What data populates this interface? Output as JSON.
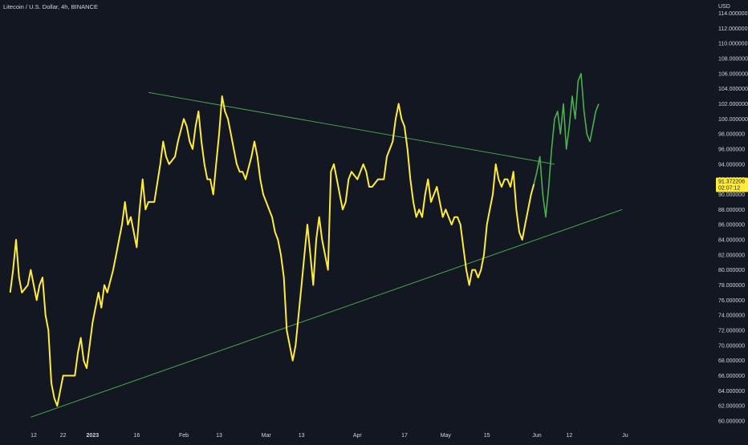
{
  "header": {
    "title": "Litecoin / U.S. Dollar, 4h, BINANCE"
  },
  "price_tag": {
    "value": "91.372206",
    "countdown": "02:07:12"
  },
  "colors": {
    "background": "#131722",
    "axis_text": "#d1d4dc",
    "price_series": "#ffeb3b",
    "projection_series": "#4caf50",
    "trendline": "#4caf50",
    "price_tag_bg": "#ffeb3b",
    "price_tag_text": "#131722"
  },
  "chart_data": {
    "type": "line",
    "currency": "USD",
    "ylim": [
      60,
      115
    ],
    "yticks": [
      60,
      62,
      64,
      66,
      68,
      70,
      72,
      74,
      76,
      78,
      80,
      82,
      84,
      86,
      88,
      90,
      92,
      94,
      96,
      98,
      100,
      102,
      104,
      106,
      108,
      110,
      112,
      114
    ],
    "ytick_labels": [
      "60.000000",
      "62.000000",
      "64.000000",
      "66.000000",
      "68.000000",
      "70.000000",
      "72.000000",
      "74.000000",
      "76.000000",
      "78.000000",
      "80.000000",
      "82.000000",
      "84.000000",
      "86.000000",
      "88.000000",
      "90.000000",
      "92.000000",
      "94.000000",
      "96.000000",
      "98.000000",
      "100.000000",
      "102.000000",
      "104.000000",
      "106.000000",
      "108.000000",
      "110.000000",
      "112.000000",
      "114.000000"
    ],
    "xticks": [
      {
        "date": "2022-12-12",
        "label": "12"
      },
      {
        "date": "2022-12-22",
        "label": "22"
      },
      {
        "date": "2023-01-01",
        "label": "2023"
      },
      {
        "date": "2023-01-16",
        "label": "16"
      },
      {
        "date": "2023-02-01",
        "label": "Feb"
      },
      {
        "date": "2023-02-13",
        "label": "13"
      },
      {
        "date": "2023-03-01",
        "label": "Mar"
      },
      {
        "date": "2023-03-13",
        "label": "13"
      },
      {
        "date": "2023-04-01",
        "label": "Apr"
      },
      {
        "date": "2023-04-17",
        "label": "17"
      },
      {
        "date": "2023-05-01",
        "label": "May"
      },
      {
        "date": "2023-05-15",
        "label": "15"
      },
      {
        "date": "2023-06-01",
        "label": "Jun"
      },
      {
        "date": "2023-06-12",
        "label": "12"
      },
      {
        "date": "2023-07-01",
        "label": "Ju"
      }
    ],
    "series": [
      {
        "color": "#ffeb3b",
        "points": [
          [
            "2022-12-04",
            77
          ],
          [
            "2022-12-05",
            80
          ],
          [
            "2022-12-06",
            84
          ],
          [
            "2022-12-07",
            79
          ],
          [
            "2022-12-08",
            77
          ],
          [
            "2022-12-10",
            78
          ],
          [
            "2022-12-11",
            80
          ],
          [
            "2022-12-12",
            78
          ],
          [
            "2022-12-13",
            76
          ],
          [
            "2022-12-14",
            78
          ],
          [
            "2022-12-15",
            79
          ],
          [
            "2022-12-16",
            74
          ],
          [
            "2022-12-17",
            72
          ],
          [
            "2022-12-18",
            65
          ],
          [
            "2022-12-19",
            63
          ],
          [
            "2022-12-20",
            62
          ],
          [
            "2022-12-21",
            64
          ],
          [
            "2022-12-22",
            66
          ],
          [
            "2022-12-24",
            66
          ],
          [
            "2022-12-26",
            66
          ],
          [
            "2022-12-27",
            69
          ],
          [
            "2022-12-28",
            71
          ],
          [
            "2022-12-29",
            68
          ],
          [
            "2022-12-30",
            67
          ],
          [
            "2022-12-31",
            70
          ],
          [
            "2023-01-01",
            73
          ],
          [
            "2023-01-02",
            75
          ],
          [
            "2023-01-03",
            77
          ],
          [
            "2023-01-04",
            75
          ],
          [
            "2023-01-05",
            78
          ],
          [
            "2023-01-06",
            77
          ],
          [
            "2023-01-08",
            80
          ],
          [
            "2023-01-09",
            82
          ],
          [
            "2023-01-10",
            84
          ],
          [
            "2023-01-11",
            86
          ],
          [
            "2023-01-12",
            89
          ],
          [
            "2023-01-13",
            86
          ],
          [
            "2023-01-14",
            87
          ],
          [
            "2023-01-15",
            85
          ],
          [
            "2023-01-16",
            83
          ],
          [
            "2023-01-17",
            88
          ],
          [
            "2023-01-18",
            92
          ],
          [
            "2023-01-19",
            88
          ],
          [
            "2023-01-20",
            89
          ],
          [
            "2023-01-22",
            89
          ],
          [
            "2023-01-24",
            94
          ],
          [
            "2023-01-25",
            97
          ],
          [
            "2023-01-26",
            95
          ],
          [
            "2023-01-27",
            94
          ],
          [
            "2023-01-29",
            95
          ],
          [
            "2023-01-30",
            97
          ],
          [
            "2023-02-01",
            100
          ],
          [
            "2023-02-02",
            99
          ],
          [
            "2023-02-03",
            97
          ],
          [
            "2023-02-04",
            96
          ],
          [
            "2023-02-05",
            99
          ],
          [
            "2023-02-06",
            101
          ],
          [
            "2023-02-07",
            97
          ],
          [
            "2023-02-08",
            94
          ],
          [
            "2023-02-09",
            92
          ],
          [
            "2023-02-10",
            92
          ],
          [
            "2023-02-11",
            90
          ],
          [
            "2023-02-12",
            94
          ],
          [
            "2023-02-13",
            98
          ],
          [
            "2023-02-14",
            103
          ],
          [
            "2023-02-15",
            101
          ],
          [
            "2023-02-16",
            100
          ],
          [
            "2023-02-17",
            98
          ],
          [
            "2023-02-18",
            96
          ],
          [
            "2023-02-19",
            94
          ],
          [
            "2023-02-20",
            93
          ],
          [
            "2023-02-21",
            93
          ],
          [
            "2023-02-22",
            92
          ],
          [
            "2023-02-24",
            95
          ],
          [
            "2023-02-25",
            97
          ],
          [
            "2023-02-26",
            95
          ],
          [
            "2023-02-27",
            92
          ],
          [
            "2023-02-28",
            90
          ],
          [
            "2023-03-01",
            89
          ],
          [
            "2023-03-02",
            88
          ],
          [
            "2023-03-03",
            87
          ],
          [
            "2023-03-04",
            85
          ],
          [
            "2023-03-05",
            84
          ],
          [
            "2023-03-06",
            82
          ],
          [
            "2023-03-07",
            79
          ],
          [
            "2023-03-08",
            72
          ],
          [
            "2023-03-09",
            70
          ],
          [
            "2023-03-10",
            68
          ],
          [
            "2023-03-11",
            70
          ],
          [
            "2023-03-12",
            74
          ],
          [
            "2023-03-13",
            78
          ],
          [
            "2023-03-14",
            82
          ],
          [
            "2023-03-15",
            86
          ],
          [
            "2023-03-16",
            82
          ],
          [
            "2023-03-17",
            78
          ],
          [
            "2023-03-18",
            84
          ],
          [
            "2023-03-19",
            87
          ],
          [
            "2023-03-20",
            84
          ],
          [
            "2023-03-21",
            82
          ],
          [
            "2023-03-22",
            80
          ],
          [
            "2023-03-23",
            93
          ],
          [
            "2023-03-24",
            94
          ],
          [
            "2023-03-25",
            92
          ],
          [
            "2023-03-26",
            90
          ],
          [
            "2023-03-27",
            88
          ],
          [
            "2023-03-28",
            89
          ],
          [
            "2023-03-29",
            92
          ],
          [
            "2023-03-30",
            93
          ],
          [
            "2023-04-01",
            92
          ],
          [
            "2023-04-03",
            94
          ],
          [
            "2023-04-04",
            93
          ],
          [
            "2023-04-05",
            91
          ],
          [
            "2023-04-06",
            91
          ],
          [
            "2023-04-08",
            92
          ],
          [
            "2023-04-10",
            92
          ],
          [
            "2023-04-11",
            95
          ],
          [
            "2023-04-12",
            96
          ],
          [
            "2023-04-13",
            97
          ],
          [
            "2023-04-14",
            100
          ],
          [
            "2023-04-15",
            102
          ],
          [
            "2023-04-16",
            100
          ],
          [
            "2023-04-17",
            99
          ],
          [
            "2023-04-18",
            96
          ],
          [
            "2023-04-19",
            92
          ],
          [
            "2023-04-20",
            89
          ],
          [
            "2023-04-21",
            87
          ],
          [
            "2023-04-22",
            88
          ],
          [
            "2023-04-23",
            87
          ],
          [
            "2023-04-24",
            90
          ],
          [
            "2023-04-25",
            92
          ],
          [
            "2023-04-26",
            89
          ],
          [
            "2023-04-27",
            90
          ],
          [
            "2023-04-28",
            91
          ],
          [
            "2023-04-29",
            89
          ],
          [
            "2023-04-30",
            87
          ],
          [
            "2023-05-01",
            88
          ],
          [
            "2023-05-02",
            87
          ],
          [
            "2023-05-03",
            86
          ],
          [
            "2023-05-04",
            87
          ],
          [
            "2023-05-05",
            87
          ],
          [
            "2023-05-06",
            86
          ],
          [
            "2023-05-07",
            83
          ],
          [
            "2023-05-08",
            80
          ],
          [
            "2023-05-09",
            78
          ],
          [
            "2023-05-10",
            80
          ],
          [
            "2023-05-11",
            80
          ],
          [
            "2023-05-12",
            79
          ],
          [
            "2023-05-13",
            80
          ],
          [
            "2023-05-14",
            82
          ],
          [
            "2023-05-15",
            86
          ],
          [
            "2023-05-16",
            88
          ],
          [
            "2023-05-17",
            90
          ],
          [
            "2023-05-18",
            94
          ],
          [
            "2023-05-19",
            92
          ],
          [
            "2023-05-20",
            91
          ],
          [
            "2023-05-21",
            92
          ],
          [
            "2023-05-22",
            92
          ],
          [
            "2023-05-23",
            91
          ],
          [
            "2023-05-24",
            93
          ],
          [
            "2023-05-25",
            88
          ],
          [
            "2023-05-26",
            85
          ],
          [
            "2023-05-27",
            84
          ],
          [
            "2023-05-28",
            86
          ],
          [
            "2023-05-29",
            88
          ],
          [
            "2023-05-30",
            90
          ],
          [
            "2023-05-31",
            91.372206
          ]
        ]
      },
      {
        "color": "#4caf50",
        "points": [
          [
            "2023-05-31",
            91.372206
          ],
          [
            "2023-06-01",
            93
          ],
          [
            "2023-06-02",
            95
          ],
          [
            "2023-06-03",
            90
          ],
          [
            "2023-06-04",
            87
          ],
          [
            "2023-06-05",
            91
          ],
          [
            "2023-06-06",
            96
          ],
          [
            "2023-06-07",
            100
          ],
          [
            "2023-06-08",
            101
          ],
          [
            "2023-06-09",
            98
          ],
          [
            "2023-06-10",
            102
          ],
          [
            "2023-06-11",
            96
          ],
          [
            "2023-06-12",
            99
          ],
          [
            "2023-06-13",
            103
          ],
          [
            "2023-06-14",
            100
          ],
          [
            "2023-06-15",
            105
          ],
          [
            "2023-06-16",
            106
          ],
          [
            "2023-06-17",
            101
          ],
          [
            "2023-06-18",
            98
          ],
          [
            "2023-06-19",
            97
          ],
          [
            "2023-06-20",
            99
          ],
          [
            "2023-06-21",
            101
          ],
          [
            "2023-06-22",
            102
          ]
        ]
      }
    ],
    "trendlines": [
      {
        "color": "#4caf50",
        "from": [
          "2023-01-20",
          103.5
        ],
        "to": [
          "2023-06-07",
          94
        ]
      },
      {
        "color": "#4caf50",
        "from": [
          "2022-12-11",
          60.5
        ],
        "to": [
          "2023-06-30",
          88
        ]
      }
    ]
  }
}
